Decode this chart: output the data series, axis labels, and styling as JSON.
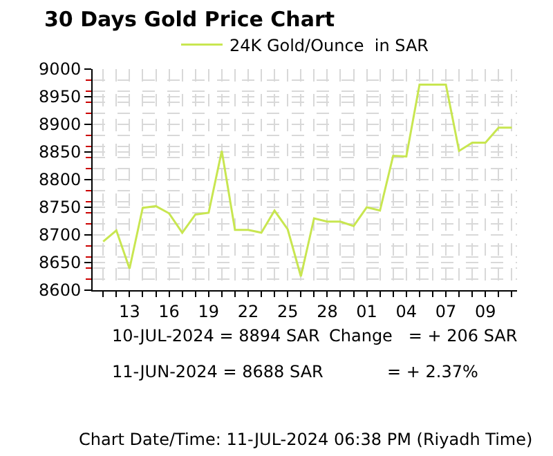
{
  "chart_data": {
    "type": "line",
    "title": "30 Days Gold Price Chart",
    "categories": [
      null,
      null,
      "13",
      null,
      null,
      "16",
      null,
      null,
      "19",
      null,
      null,
      "22",
      null,
      null,
      "25",
      null,
      null,
      "28",
      null,
      null,
      "01",
      null,
      null,
      "04",
      null,
      null,
      "07",
      null,
      null,
      "09",
      null,
      null
    ],
    "series": [
      {
        "name": "24K Gold/Ounce  in SAR",
        "color": "#c8e650",
        "values": [
          8688,
          8708,
          8639,
          8749,
          8752,
          8739,
          8704,
          8737,
          8740,
          8852,
          8709,
          8709,
          8704,
          8744,
          8710,
          8625,
          8730,
          8724,
          8724,
          8716,
          8750,
          8744,
          8843,
          8842,
          8972,
          8972,
          8972,
          8852,
          8867,
          8867,
          8894,
          8894
        ]
      }
    ],
    "ylim": [
      8600,
      9000
    ],
    "yticks": [
      8600,
      8650,
      8700,
      8750,
      8800,
      8850,
      8900,
      8950,
      9000
    ],
    "grid": true,
    "legend": "top",
    "marker": "none",
    "line_style": "solid",
    "annotations": [
      "10-JUL-2024 = 8894 SAR",
      "11-JUN-2024 = 8688 SAR",
      "Change   = + 206 SAR",
      "= + 2.37%",
      "Chart Date/Time: 11-JUL-2024 06:38 PM (Riyadh Time)"
    ]
  }
}
